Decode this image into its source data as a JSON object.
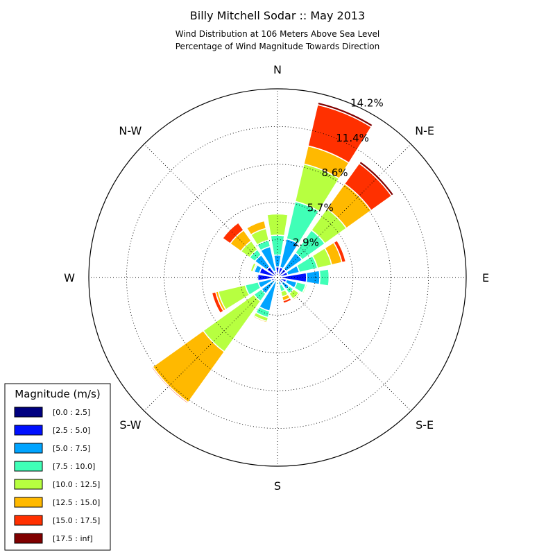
{
  "chart_data": {
    "type": "windrose",
    "title": "Billy Mitchell Sodar :: May 2013",
    "subtitle_lines": [
      "Wind Distribution at 106 Meters Above Sea Level",
      "Percentage of Wind Magnitude Towards Direction"
    ],
    "direction_labels": [
      "N",
      "N-E",
      "E",
      "S-E",
      "S",
      "S-W",
      "W",
      "N-W"
    ],
    "ring_labels": [
      "2.9%",
      "5.7%",
      "8.6%",
      "11.4%",
      "14.2%"
    ],
    "ring_values": [
      2.85,
      5.7,
      8.55,
      11.4,
      14.25
    ],
    "rmax": 14.25,
    "legend_title": "Magnitude (m/s)",
    "bins": [
      {
        "label": "[0.0 : 2.5]",
        "color": "#000080"
      },
      {
        "label": "[2.5 : 5.0]",
        "color": "#0010ff"
      },
      {
        "label": "[5.0 : 7.5]",
        "color": "#00a4ff"
      },
      {
        "label": "[7.5 : 10.0]",
        "color": "#40ffb7"
      },
      {
        "label": "[10.0 : 12.5]",
        "color": "#b7ff40"
      },
      {
        "label": "[12.5 : 15.0]",
        "color": "#ffb900"
      },
      {
        "label": "[15.0 : 17.5]",
        "color": "#ff3000"
      },
      {
        "label": "[17.5 : inf]",
        "color": "#800000"
      }
    ],
    "sector_width_deg": 22.5,
    "sectors": [
      {
        "direction_deg": 0,
        "cumulative_pct": [
          0.1,
          0.8,
          1.7,
          3.2,
          4.8,
          4.8,
          4.8,
          4.8
        ]
      },
      {
        "direction_deg": 22.5,
        "cumulative_pct": [
          0.1,
          0.8,
          3.0,
          5.9,
          8.8,
          10.2,
          13.4,
          13.6
        ]
      },
      {
        "direction_deg": 45,
        "cumulative_pct": [
          0.1,
          0.8,
          2.3,
          4.4,
          6.4,
          8.7,
          10.6,
          10.8
        ]
      },
      {
        "direction_deg": 67.5,
        "cumulative_pct": [
          0.1,
          0.8,
          1.7,
          3.1,
          4.2,
          5.0,
          5.3,
          5.3
        ]
      },
      {
        "direction_deg": 90,
        "cumulative_pct": [
          0.1,
          2.2,
          3.2,
          3.9,
          3.9,
          3.9,
          3.9,
          3.9
        ]
      },
      {
        "direction_deg": 112.5,
        "cumulative_pct": [
          0.1,
          0.7,
          1.5,
          2.2,
          2.3,
          2.3,
          2.3,
          2.3
        ]
      },
      {
        "direction_deg": 135,
        "cumulative_pct": [
          0.1,
          0.5,
          1.1,
          1.5,
          2.0,
          2.1,
          2.1,
          2.1
        ]
      },
      {
        "direction_deg": 157.5,
        "cumulative_pct": [
          0.1,
          0.3,
          0.6,
          1.1,
          1.5,
          1.8,
          2.0,
          2.0
        ]
      },
      {
        "direction_deg": 180,
        "cumulative_pct": [
          0.1,
          0.2,
          0.3,
          0.3,
          0.5,
          0.5,
          0.5,
          0.5
        ]
      },
      {
        "direction_deg": 202.5,
        "cumulative_pct": [
          0.1,
          0.3,
          2.6,
          3.1,
          3.4,
          3.5,
          3.5,
          3.5
        ]
      },
      {
        "direction_deg": 225,
        "cumulative_pct": [
          0.1,
          0.3,
          1.5,
          2.2,
          6.9,
          11.6,
          11.7,
          11.7
        ]
      },
      {
        "direction_deg": 247.5,
        "cumulative_pct": [
          0.1,
          0.5,
          1.5,
          2.5,
          4.6,
          4.8,
          5.1,
          5.1
        ]
      },
      {
        "direction_deg": 270,
        "cumulative_pct": [
          0.1,
          1.5,
          1.6,
          1.6,
          1.6,
          1.6,
          1.6,
          1.6
        ]
      },
      {
        "direction_deg": 292.5,
        "cumulative_pct": [
          0.1,
          1.4,
          1.8,
          1.9,
          2.1,
          2.1,
          2.1,
          2.1
        ]
      },
      {
        "direction_deg": 315,
        "cumulative_pct": [
          0.1,
          1.0,
          2.1,
          2.6,
          3.4,
          4.4,
          5.1,
          5.1
        ]
      },
      {
        "direction_deg": 337.5,
        "cumulative_pct": [
          0.1,
          0.5,
          2.4,
          2.9,
          3.8,
          4.4,
          4.4,
          4.4
        ]
      }
    ]
  }
}
